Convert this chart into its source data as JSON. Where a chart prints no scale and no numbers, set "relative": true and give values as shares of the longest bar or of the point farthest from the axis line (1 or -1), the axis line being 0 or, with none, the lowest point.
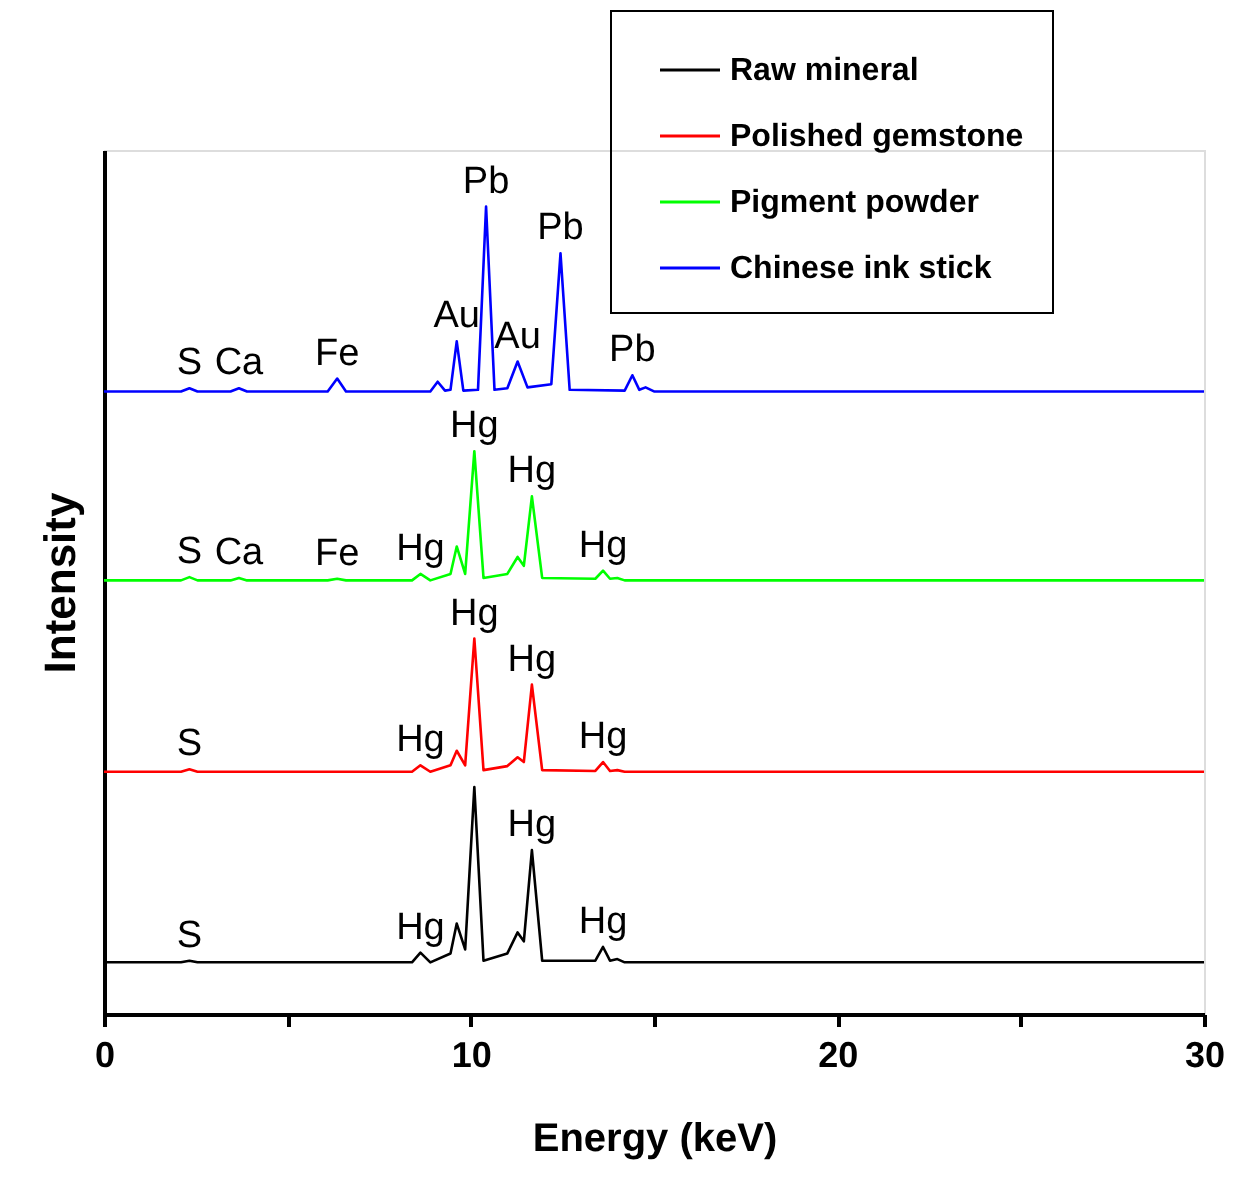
{
  "chart_data": {
    "type": "line",
    "relative": true,
    "xlabel": "Energy (keV)",
    "ylabel": "Intensity",
    "xlim": [
      0,
      30
    ],
    "xticks": [
      0,
      {
        "value": 5,
        "label": null
      },
      10,
      {
        "value": 15,
        "label": null
      },
      20,
      {
        "value": 25,
        "label": null
      },
      30
    ],
    "legend": "top right",
    "grid": false,
    "marker": "none",
    "line_style": "solid",
    "series": [
      {
        "name": "Raw mineral",
        "color": "#000000",
        "x": [
          0,
          2.1,
          2.33,
          2.55,
          8.4,
          8.63,
          8.9,
          9.45,
          9.62,
          9.85,
          10.1,
          10.35,
          11.0,
          11.28,
          11.45,
          11.67,
          11.95,
          13.4,
          13.61,
          13.8,
          14.0,
          14.2,
          30
        ],
        "values": [
          0.064,
          0.064,
          0.066,
          0.064,
          0.064,
          0.076,
          0.064,
          0.075,
          0.112,
          0.08,
          0.281,
          0.066,
          0.075,
          0.101,
          0.09,
          0.203,
          0.066,
          0.066,
          0.083,
          0.066,
          0.068,
          0.064,
          0.064
        ]
      },
      {
        "name": "Polished gemstone",
        "color": "#ff0000",
        "x": [
          0,
          2.1,
          2.33,
          2.55,
          8.4,
          8.63,
          8.9,
          9.45,
          9.62,
          9.85,
          10.1,
          10.35,
          11.0,
          11.28,
          11.45,
          11.67,
          11.95,
          13.4,
          13.61,
          13.8,
          14.0,
          14.2,
          30
        ],
        "values": [
          0.3,
          0.3,
          0.303,
          0.3,
          0.3,
          0.308,
          0.3,
          0.308,
          0.326,
          0.308,
          0.465,
          0.302,
          0.307,
          0.318,
          0.312,
          0.408,
          0.302,
          0.301,
          0.312,
          0.301,
          0.302,
          0.3,
          0.3
        ]
      },
      {
        "name": "Pigment powder",
        "color": "#00ff00",
        "x": [
          0,
          2.1,
          2.33,
          2.55,
          3.45,
          3.68,
          3.9,
          6.1,
          6.36,
          6.6,
          8.4,
          8.63,
          8.9,
          9.45,
          9.62,
          9.85,
          10.1,
          10.35,
          11.0,
          11.28,
          11.45,
          11.67,
          11.95,
          13.4,
          13.61,
          13.8,
          14.0,
          14.2,
          30
        ],
        "values": [
          0.537,
          0.537,
          0.541,
          0.537,
          0.537,
          0.54,
          0.537,
          0.537,
          0.539,
          0.537,
          0.537,
          0.545,
          0.537,
          0.545,
          0.579,
          0.545,
          0.697,
          0.54,
          0.545,
          0.566,
          0.555,
          0.641,
          0.54,
          0.539,
          0.549,
          0.539,
          0.54,
          0.537,
          0.537
        ]
      },
      {
        "name": "Chinese ink stick",
        "color": "#0000ff",
        "x": [
          0,
          2.1,
          2.33,
          2.55,
          3.45,
          3.68,
          3.9,
          6.1,
          6.36,
          6.6,
          8.9,
          9.1,
          9.3,
          9.45,
          9.62,
          9.8,
          10.2,
          10.42,
          10.65,
          11.0,
          11.28,
          11.55,
          12.2,
          12.45,
          12.7,
          14.2,
          14.41,
          14.6,
          14.77,
          15.0,
          30
        ],
        "values": [
          0.771,
          0.771,
          0.775,
          0.771,
          0.771,
          0.775,
          0.771,
          0.771,
          0.787,
          0.771,
          0.771,
          0.783,
          0.772,
          0.773,
          0.833,
          0.772,
          0.773,
          1,
          0.773,
          0.775,
          0.808,
          0.776,
          0.78,
          0.942,
          0.773,
          0.772,
          0.791,
          0.773,
          0.776,
          0.771,
          0.771
        ]
      }
    ],
    "annotations": [
      {
        "text": "S",
        "x": 2.33,
        "y": 0.775
      },
      {
        "text": "Ca",
        "x": 3.68,
        "y": 0.775
      },
      {
        "text": "Fe",
        "x": 6.36,
        "y": 0.787
      },
      {
        "text": "Au",
        "x": 9.62,
        "y": 0.833
      },
      {
        "text": "Pb",
        "x": 10.42,
        "y": 1
      },
      {
        "text": "Au",
        "x": 11.28,
        "y": 0.808
      },
      {
        "text": "Pb",
        "x": 12.45,
        "y": 0.942
      },
      {
        "text": "Pb",
        "x": 14.41,
        "y": 0.791
      },
      {
        "text": "S",
        "x": 2.33,
        "y": 0.541
      },
      {
        "text": "Ca",
        "x": 3.68,
        "y": 0.54
      },
      {
        "text": "Fe",
        "x": 6.36,
        "y": 0.539
      },
      {
        "text": "Hg",
        "x": 8.63,
        "y": 0.545
      },
      {
        "text": "Hg",
        "x": 10.1,
        "y": 0.697
      },
      {
        "text": "Hg",
        "x": 11.67,
        "y": 0.641
      },
      {
        "text": "Hg",
        "x": 13.61,
        "y": 0.549
      },
      {
        "text": "S",
        "x": 2.33,
        "y": 0.303
      },
      {
        "text": "Hg",
        "x": 8.63,
        "y": 0.308
      },
      {
        "text": "Hg",
        "x": 10.1,
        "y": 0.465
      },
      {
        "text": "Hg",
        "x": 11.67,
        "y": 0.408
      },
      {
        "text": "Hg",
        "x": 13.61,
        "y": 0.312
      },
      {
        "text": "S",
        "x": 2.33,
        "y": 0.066
      },
      {
        "text": "Hg",
        "x": 8.63,
        "y": 0.076
      },
      {
        "text": "Hg",
        "x": 11.67,
        "y": 0.203
      },
      {
        "text": "Hg",
        "x": 13.61,
        "y": 0.083
      }
    ]
  }
}
